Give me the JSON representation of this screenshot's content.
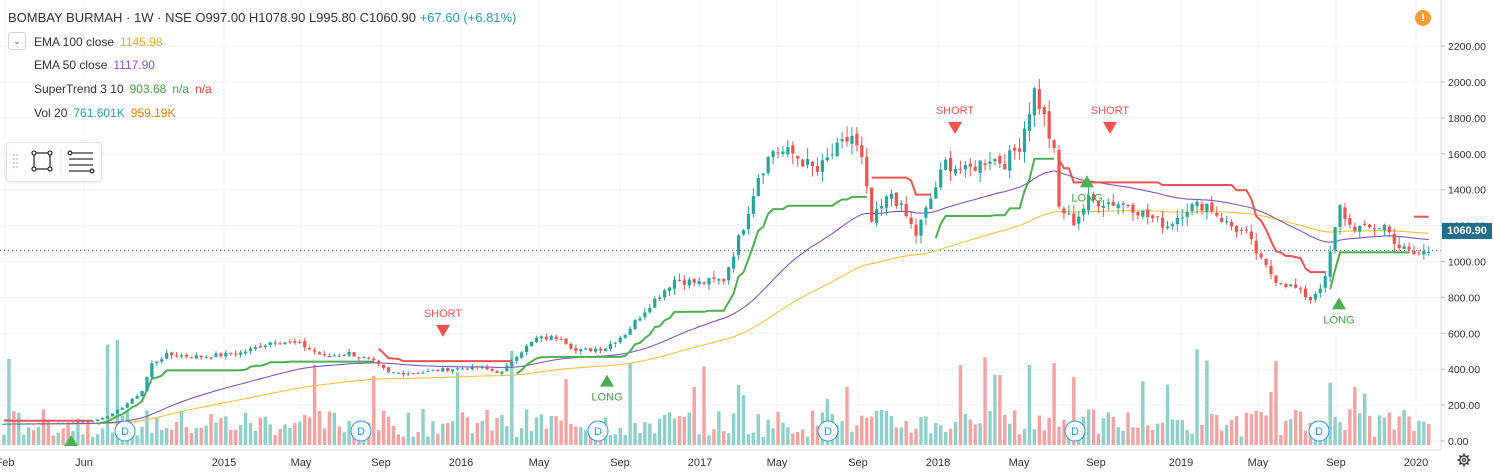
{
  "header": {
    "symbol": "BOMBAY BURMAH",
    "interval": "1W",
    "exchange": "NSE",
    "separator": "·",
    "open": "O997.00",
    "high": "H1078.90",
    "low": "L995.80",
    "close": "C1060.90",
    "change": "+67.60 (+6.81%)"
  },
  "indicators": [
    {
      "name": "EMA 100 close",
      "values": [
        "1145.98"
      ],
      "colors": [
        "#f5a623"
      ]
    },
    {
      "name": "EMA 50 close",
      "values": [
        "1117.90"
      ],
      "colors": [
        "#7e57c2"
      ]
    },
    {
      "name": "SuperTrend 3 10",
      "values": [
        "903.68",
        "n/a",
        "n/a"
      ],
      "colors": [
        "#43a047",
        "#43a047",
        "#e53935"
      ]
    },
    {
      "name": "Vol 20",
      "values": [
        "761.601K",
        "959.19K"
      ],
      "colors": [
        "#26a69a",
        "#f57c00"
      ]
    }
  ],
  "colors": {
    "up": "#26a69a",
    "down": "#ef5350",
    "supertrend_up": "#4caf50",
    "supertrend_down": "#f05350",
    "ema100": "#f5c142",
    "ema50": "#7e57c2",
    "vol_up": "#8fd0c8",
    "vol_down": "#f4a3a3",
    "price_tag": "#1f6f8b"
  },
  "last_price": "1060.90",
  "icons": [
    "chevron-down-icon",
    "rectangle-tool-icon",
    "lines-tool-icon",
    "alert-icon",
    "settings-gear-icon",
    "dividend-marker-icon"
  ],
  "chart_data": {
    "type": "candlestick",
    "y_axis": {
      "ticks": [
        "2200.00",
        "2000.00",
        "1800.00",
        "1600.00",
        "1400.00",
        "1200.00",
        "1000.00",
        "800.00",
        "600.00",
        "400.00",
        "200.00",
        "0.00"
      ],
      "range": [
        0,
        2200
      ]
    },
    "x_axis": {
      "labels": [
        "Feb",
        "Jun",
        "2015",
        "May",
        "Sep",
        "2016",
        "May",
        "Sep",
        "2017",
        "May",
        "Sep",
        "2018",
        "May",
        "Sep",
        "2019",
        "May",
        "Sep",
        "2020"
      ]
    },
    "signals": [
      {
        "label": "SHORT",
        "type": "short"
      },
      {
        "label": "LONG",
        "type": "long"
      },
      {
        "label": "SHORT",
        "type": "short"
      },
      {
        "label": "LONG",
        "type": "long"
      },
      {
        "label": "SHORT",
        "type": "short"
      },
      {
        "label": "LONG",
        "type": "long"
      }
    ],
    "dividend_marker_label": "D",
    "price_keypoints": [
      [
        0,
        95
      ],
      [
        12,
        100
      ],
      [
        18,
        110
      ],
      [
        22,
        150
      ],
      [
        26,
        230
      ],
      [
        28,
        280
      ],
      [
        30,
        430
      ],
      [
        33,
        480
      ],
      [
        40,
        470
      ],
      [
        48,
        490
      ],
      [
        55,
        560
      ],
      [
        60,
        540
      ],
      [
        65,
        470
      ],
      [
        70,
        490
      ],
      [
        75,
        440
      ],
      [
        78,
        380
      ],
      [
        84,
        380
      ],
      [
        90,
        400
      ],
      [
        96,
        410
      ],
      [
        101,
        380
      ],
      [
        104,
        480
      ],
      [
        108,
        570
      ],
      [
        113,
        580
      ],
      [
        116,
        500
      ],
      [
        122,
        520
      ],
      [
        126,
        600
      ],
      [
        131,
        760
      ],
      [
        136,
        900
      ],
      [
        141,
        880
      ],
      [
        146,
        900
      ],
      [
        150,
        1200
      ],
      [
        153,
        1480
      ],
      [
        156,
        1620
      ],
      [
        160,
        1600
      ],
      [
        165,
        1500
      ],
      [
        168,
        1600
      ],
      [
        172,
        1700
      ],
      [
        174,
        1560
      ],
      [
        176,
        1220
      ],
      [
        180,
        1380
      ],
      [
        183,
        1250
      ],
      [
        185,
        1150
      ],
      [
        188,
        1350
      ],
      [
        191,
        1550
      ],
      [
        195,
        1500
      ],
      [
        200,
        1580
      ],
      [
        203,
        1550
      ],
      [
        206,
        1650
      ],
      [
        209,
        1950
      ],
      [
        211,
        1800
      ],
      [
        213,
        1600
      ],
      [
        214,
        1300
      ],
      [
        217,
        1220
      ],
      [
        220,
        1340
      ],
      [
        224,
        1330
      ],
      [
        228,
        1320
      ],
      [
        232,
        1250
      ],
      [
        236,
        1200
      ],
      [
        240,
        1300
      ],
      [
        244,
        1320
      ],
      [
        248,
        1210
      ],
      [
        252,
        1150
      ],
      [
        255,
        1000
      ],
      [
        258,
        900
      ],
      [
        262,
        850
      ],
      [
        265,
        790
      ],
      [
        268,
        900
      ],
      [
        269,
        1050
      ],
      [
        271,
        1300
      ],
      [
        273,
        1200
      ],
      [
        276,
        1180
      ],
      [
        280,
        1200
      ],
      [
        283,
        1080
      ],
      [
        286,
        1040
      ],
      [
        289,
        1060
      ]
    ]
  }
}
